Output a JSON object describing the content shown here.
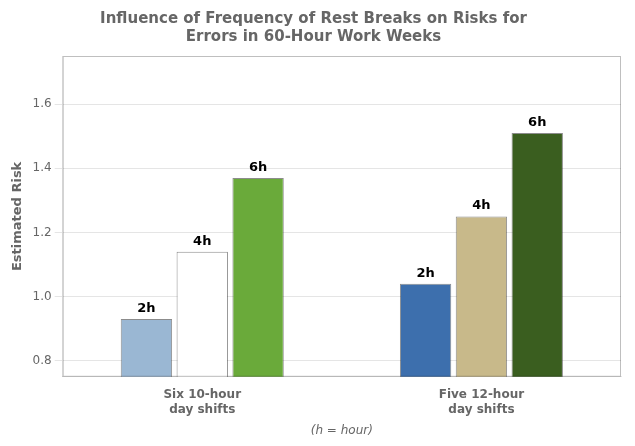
{
  "chart_data": {
    "type": "bar",
    "title": "Influence of Frequency of Rest Breaks on Risks for\nErrors in 60-Hour Work Weeks",
    "ylabel": "Estimated Risk",
    "xlabel": "(h = hour)",
    "categories": [
      "Six 10-hour\nday shifts",
      "Five 12-hour\nday shifts"
    ],
    "series": [
      {
        "name": "2h",
        "colors": [
          "#9ab7d3",
          "#3d6fad"
        ],
        "values": [
          0.93,
          1.04
        ]
      },
      {
        "name": "4h",
        "colors": [
          "#ffffff",
          "#c8b98a"
        ],
        "values": [
          1.14,
          1.25
        ]
      },
      {
        "name": "6h",
        "colors": [
          "#6aaa3a",
          "#3a5e1f"
        ],
        "values": [
          1.37,
          1.51
        ]
      }
    ],
    "ylim": [
      0.75,
      1.75
    ],
    "yticks": [
      0.8,
      {
        "value": 1,
        "label": "1.0"
      },
      1.2,
      1.4,
      1.6
    ],
    "grid": true
  }
}
